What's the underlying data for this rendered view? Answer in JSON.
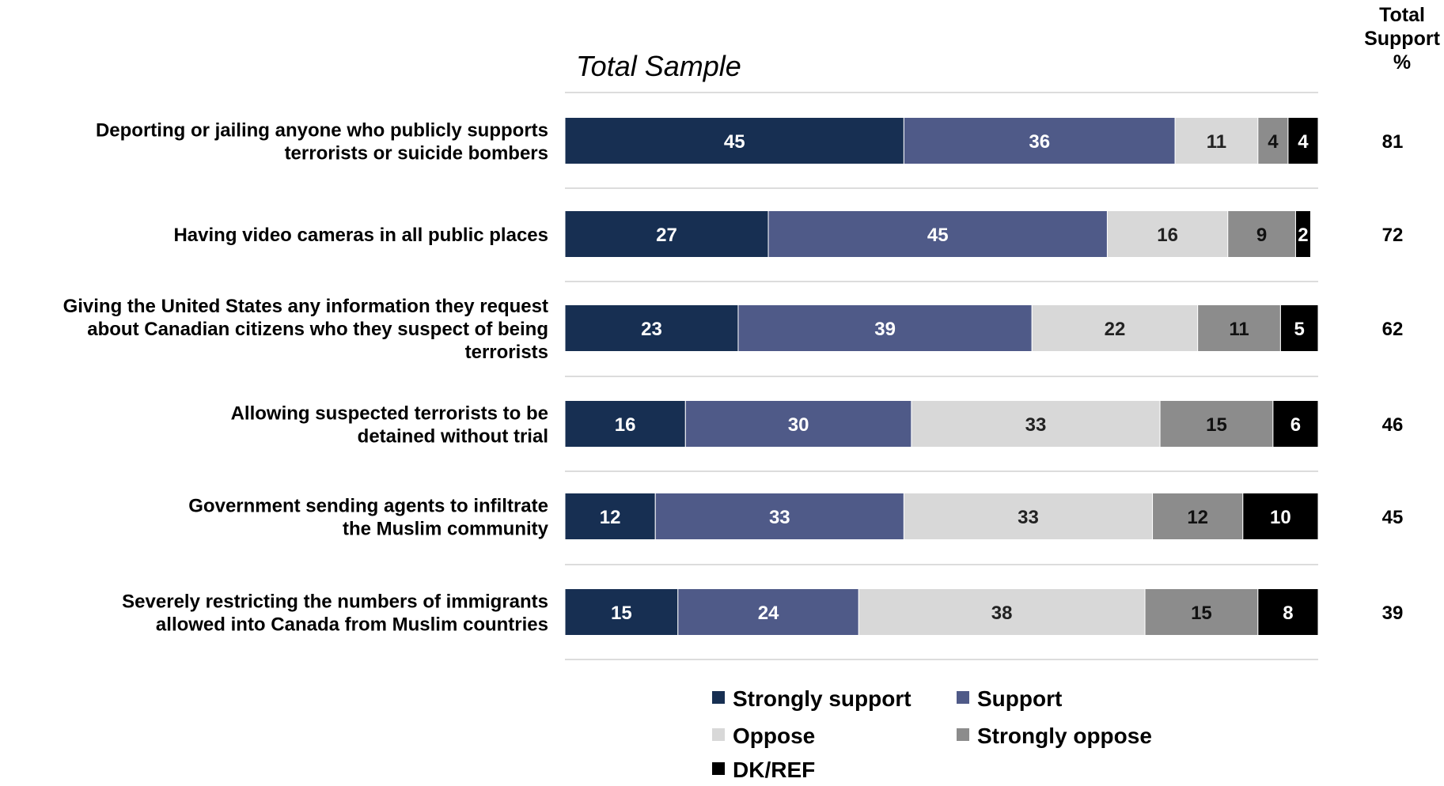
{
  "chart_data": {
    "type": "bar",
    "orientation": "horizontal",
    "stacked": true,
    "subtitle": "Total Sample",
    "total_header": [
      "Total",
      "Support",
      "%"
    ],
    "categories": [
      [
        "Deporting or jailing anyone who publicly supports",
        "terrorists or suicide bombers"
      ],
      [
        "Having video cameras in all public places"
      ],
      [
        "Giving the United States any information they request",
        "about Canadian citizens who they suspect of being",
        "terrorists"
      ],
      [
        "Allowing suspected terrorists to be",
        "detained without trial"
      ],
      [
        "Government sending agents to infiltrate",
        "the Muslim community"
      ],
      [
        "Severely restricting the numbers of immigrants",
        "allowed into Canada from Muslim countries"
      ]
    ],
    "series": [
      {
        "name": "Strongly support",
        "color": "#172f52",
        "label_color": "#ffffff",
        "values": [
          45,
          27,
          23,
          16,
          12,
          15
        ]
      },
      {
        "name": "Support",
        "color": "#4f5a88",
        "label_color": "#ffffff",
        "values": [
          36,
          45,
          39,
          30,
          33,
          24
        ]
      },
      {
        "name": "Oppose",
        "color": "#d8d8d8",
        "label_color": "#222222",
        "values": [
          11,
          16,
          22,
          33,
          33,
          38
        ]
      },
      {
        "name": "Strongly oppose",
        "color": "#8c8c8c",
        "label_color": "#111111",
        "values": [
          4,
          9,
          11,
          15,
          12,
          15
        ]
      },
      {
        "name": "DK/REF",
        "color": "#000000",
        "label_color": "#ffffff",
        "values": [
          4,
          2,
          5,
          6,
          10,
          8
        ]
      }
    ],
    "total_support": [
      81,
      72,
      62,
      46,
      45,
      39
    ],
    "xlim": [
      0,
      100
    ],
    "grid": false,
    "legend_position": "bottom"
  }
}
